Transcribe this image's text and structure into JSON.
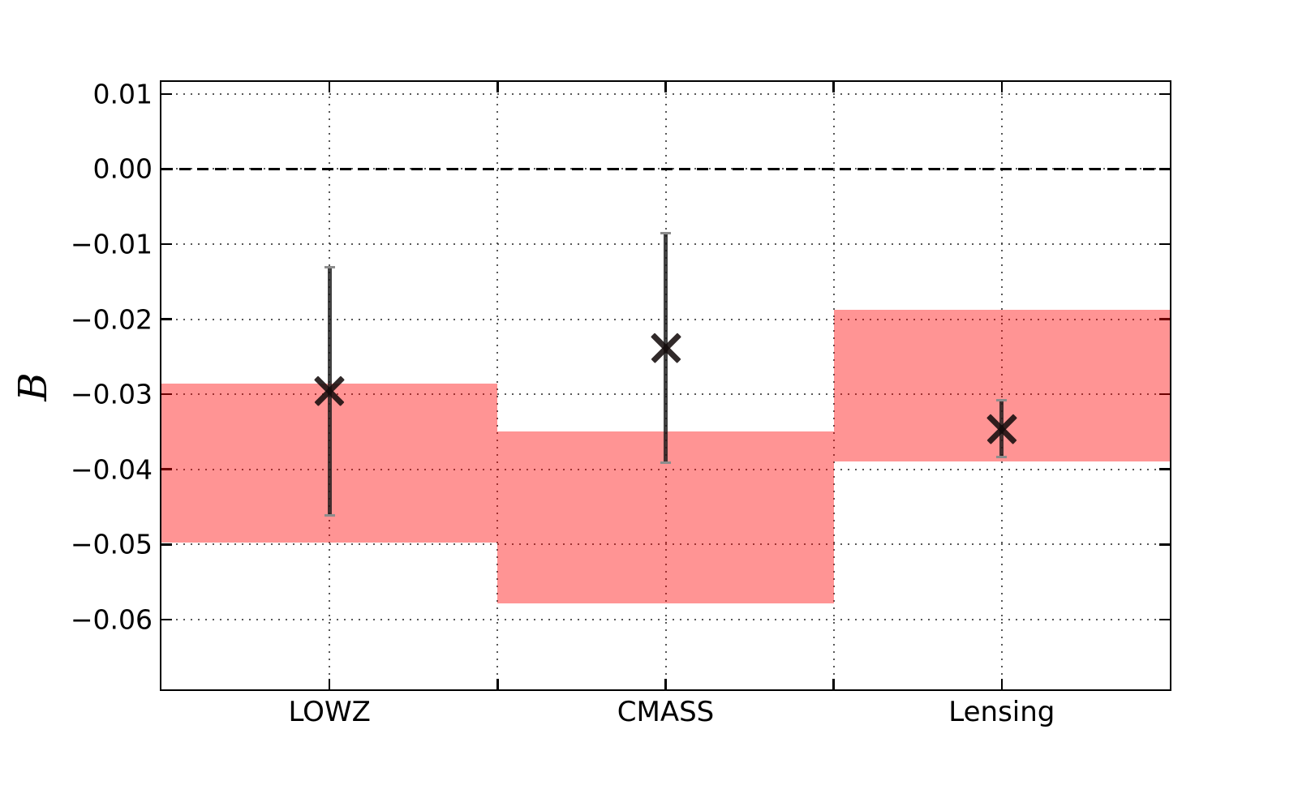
{
  "figure": {
    "background": "#ffffff"
  },
  "chart_data": {
    "type": "scatter",
    "subtype": "errorbar-with-confidence-bands",
    "title": "",
    "xlabel": "",
    "ylabel": "B",
    "categories": [
      "LOWZ",
      "CMASS",
      "Lensing"
    ],
    "points": [
      {
        "category": "LOWZ",
        "value": -0.0296,
        "err_plus": 0.0165,
        "err_minus": 0.0165,
        "band_high": -0.0286,
        "band_low": -0.0497
      },
      {
        "category": "CMASS",
        "value": -0.0238,
        "err_plus": 0.0153,
        "err_minus": 0.0153,
        "band_high": -0.0349,
        "band_low": -0.0578
      },
      {
        "category": "Lensing",
        "value": -0.0346,
        "err_plus": 0.0038,
        "err_minus": 0.0038,
        "band_high": -0.0187,
        "band_low": -0.0389
      }
    ],
    "yticks": [
      0.01,
      0.0,
      -0.01,
      -0.02,
      -0.03,
      -0.04,
      -0.05,
      -0.06
    ],
    "ytick_labels": [
      "0.01",
      "0.00",
      "−0.01",
      "−0.02",
      "−0.03",
      "−0.04",
      "−0.05",
      "−0.06"
    ],
    "ylim": [
      -0.0693,
      0.0116
    ],
    "zero_line": 0.0,
    "grid": true,
    "legend": "none",
    "colors": {
      "band": "rgba(255,0,0,0.42)",
      "band_flat_equivalent": "#ff9595",
      "errorbar": "rgba(25,25,25,0.82)",
      "errorbar_cap": "#8c8c8c",
      "marker": "rgba(20,12,12,0.88)",
      "grid": "#3a3a3a",
      "axis": "#000000",
      "zero_line": "#000000"
    }
  }
}
